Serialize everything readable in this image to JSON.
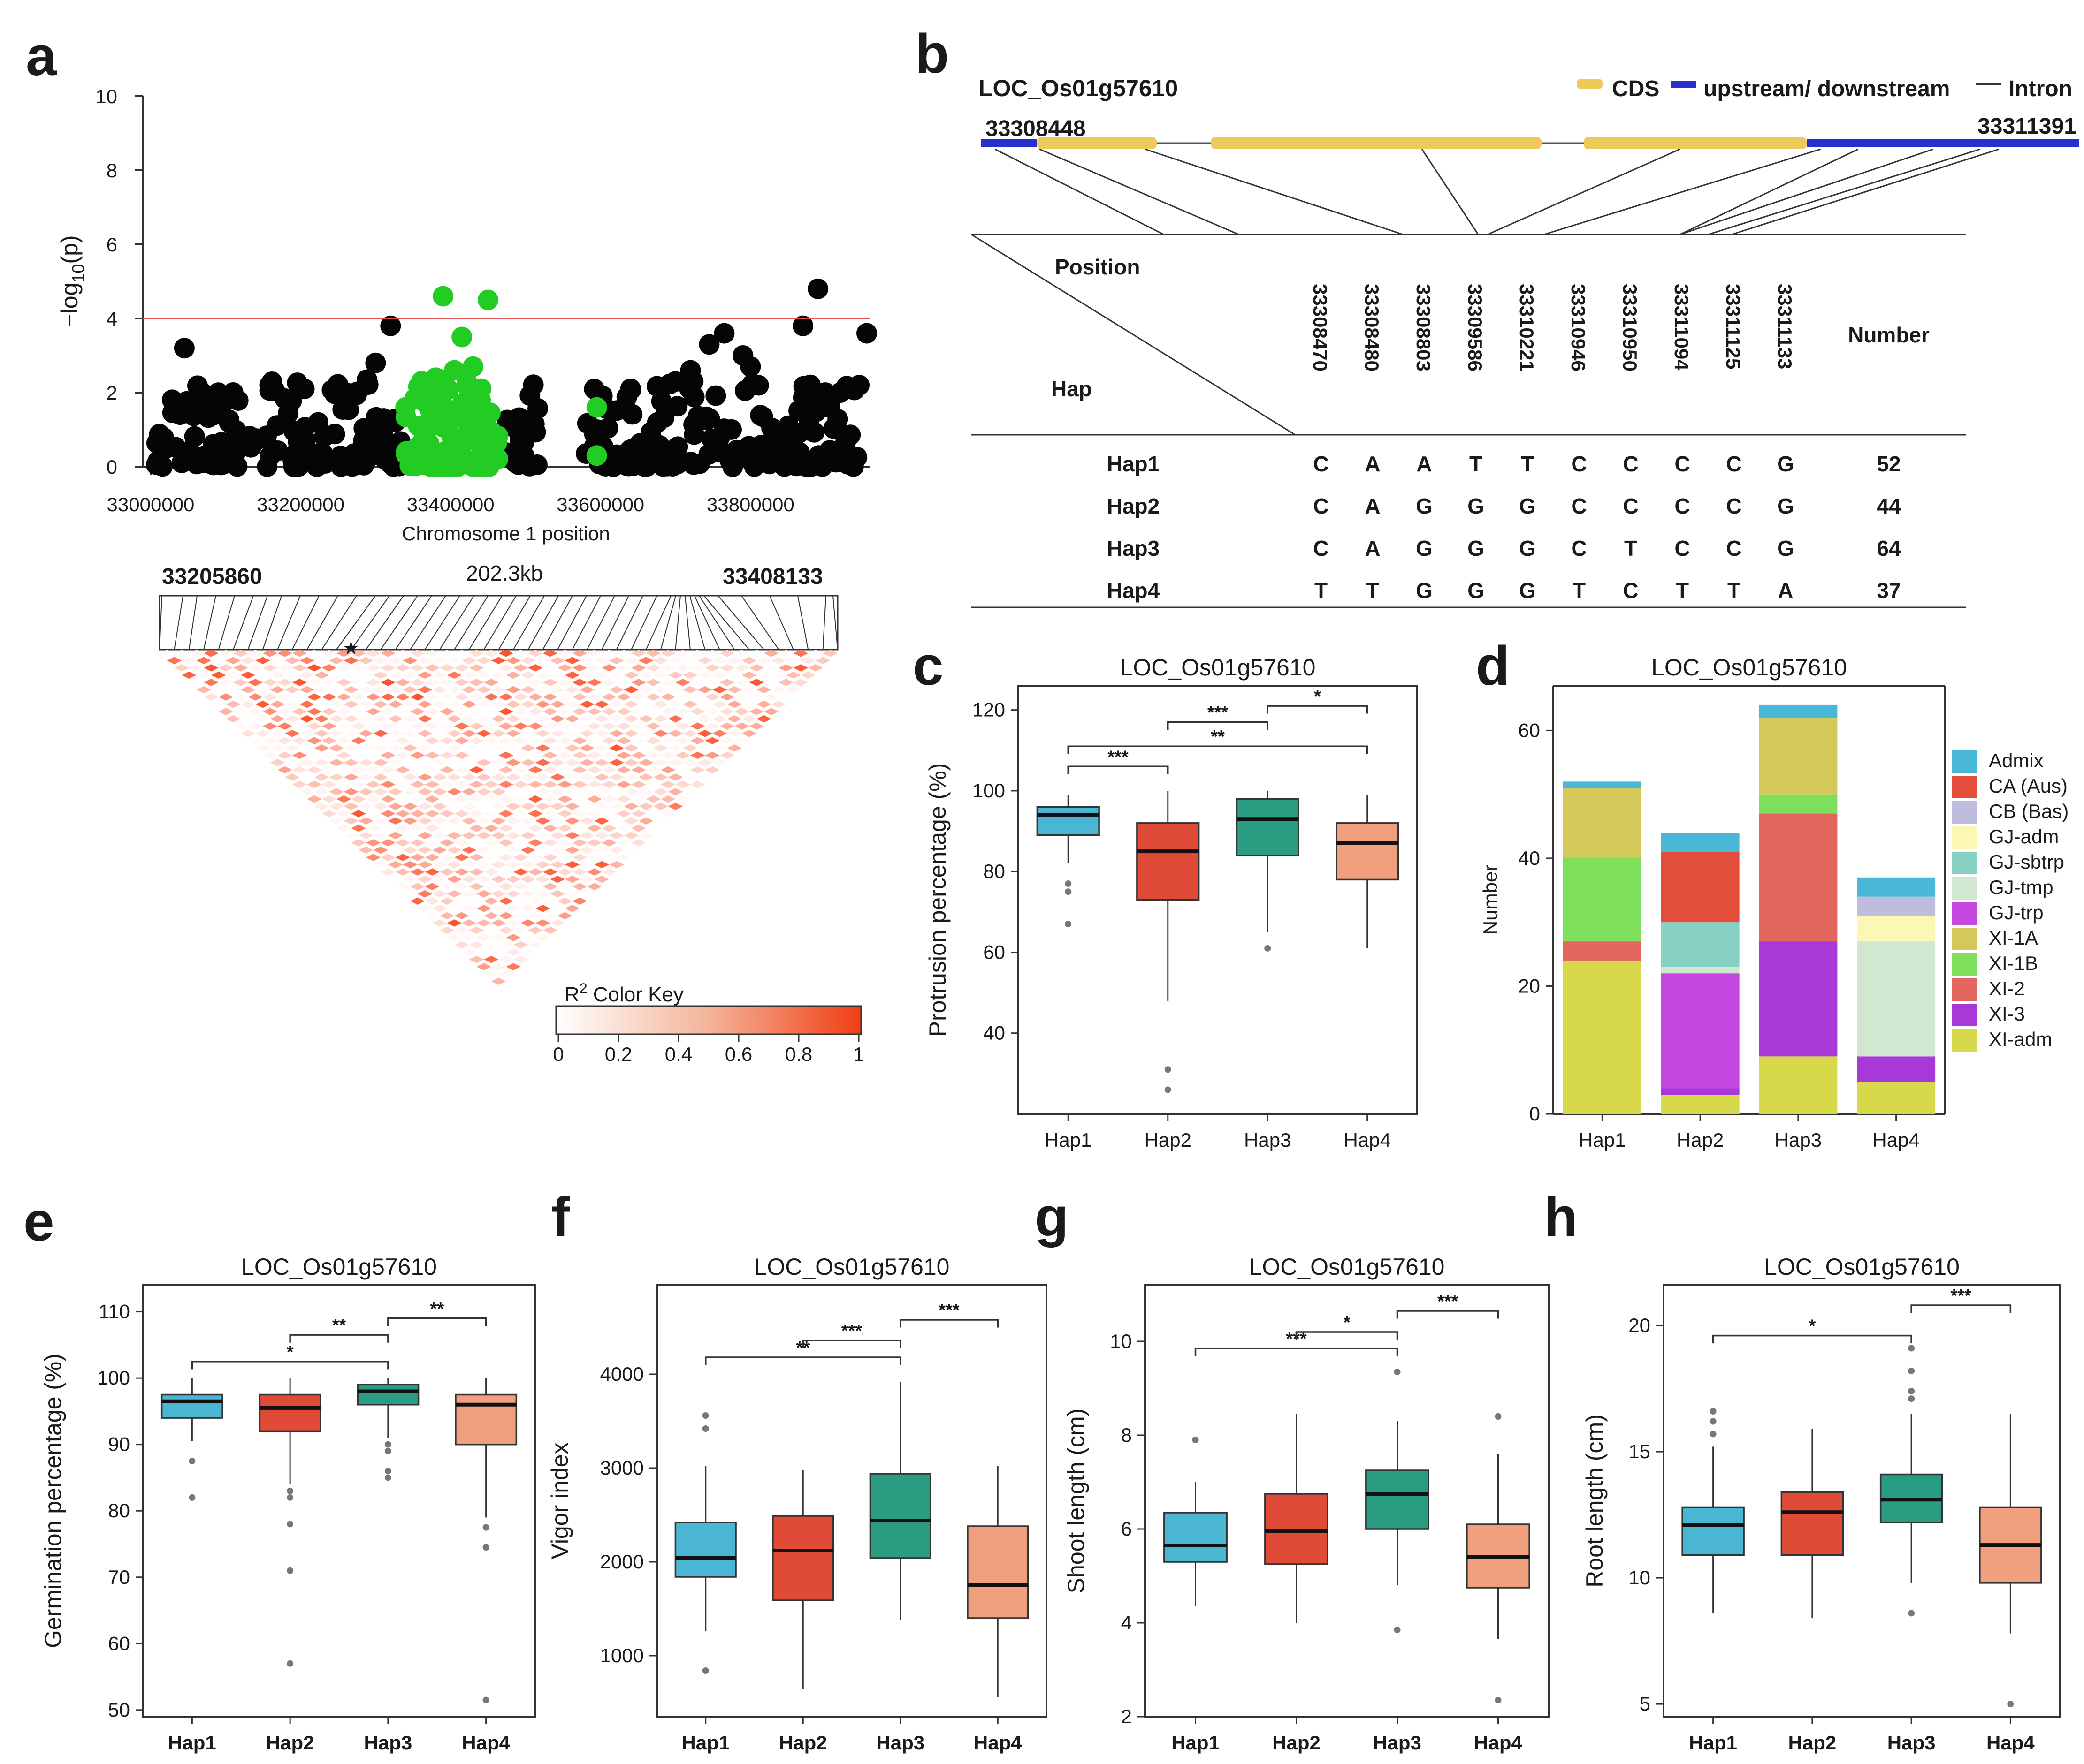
{
  "colors": {
    "hap1": "#4BB6D3",
    "hap2": "#E04B38",
    "hap3": "#2A9C82",
    "hap4": "#F0A07E",
    "sig_green": "#22CC22",
    "threshold_line": "#E05050",
    "cds": "#EFC95A",
    "utr": "#2A2ECC",
    "ld_max": "#F03E14"
  },
  "panel_a": {
    "label": "a",
    "manhattan": {
      "ylabel": "-log10(p)",
      "ylabel_main": "−log",
      "ylabel_sub": "10",
      "ylabel_rest": "(p)",
      "xlabel": "Chromosome 1 position",
      "yticks": [
        "0",
        "2",
        "4",
        "6",
        "8",
        "10"
      ],
      "xticks": [
        "33000000",
        "33200000",
        "33400000",
        "33600000",
        "33800000"
      ],
      "threshold": 4,
      "xlim": [
        32990000,
        33960000
      ],
      "ylim": [
        0,
        10
      ]
    },
    "ld": {
      "left_pos": "33205860",
      "right_pos": "33408133",
      "span": "202.3kb",
      "key_title_main": "R",
      "key_title_sup": "2",
      "key_title_rest": " Color Key",
      "key_ticks": [
        "0",
        "0.2",
        "0.4",
        "0.6",
        "0.8",
        "1"
      ]
    }
  },
  "panel_b": {
    "label": "b",
    "gene": "LOC_Os01g57610",
    "start": "33308448",
    "end": "33311391",
    "legend": {
      "cds": "CDS",
      "updown": "upstream/ downstream",
      "intron": "Intron"
    },
    "table": {
      "position_header": "Position",
      "hap_header": "Hap",
      "number_header": "Number",
      "positions": [
        "33308470",
        "33308480",
        "33308803",
        "33309586",
        "33310221",
        "33310946",
        "33310950",
        "33311094",
        "33311125",
        "33311133"
      ],
      "rows": [
        {
          "hap": "Hap1",
          "alleles": [
            "C",
            "A",
            "A",
            "T",
            "T",
            "C",
            "C",
            "C",
            "C",
            "G"
          ],
          "number": "52"
        },
        {
          "hap": "Hap2",
          "alleles": [
            "C",
            "A",
            "G",
            "G",
            "G",
            "C",
            "C",
            "C",
            "C",
            "G"
          ],
          "number": "44"
        },
        {
          "hap": "Hap3",
          "alleles": [
            "C",
            "A",
            "G",
            "G",
            "G",
            "C",
            "T",
            "C",
            "C",
            "G"
          ],
          "number": "64"
        },
        {
          "hap": "Hap4",
          "alleles": [
            "T",
            "T",
            "G",
            "G",
            "G",
            "T",
            "C",
            "T",
            "T",
            "A"
          ],
          "number": "37"
        }
      ]
    }
  },
  "chart_data": [
    {
      "id": "c",
      "type": "boxplot",
      "title": "LOC_Os01g57610",
      "ylabel": "Protrusion percentage  (%)",
      "xlabel": "",
      "categories": [
        "Hap1",
        "Hap2",
        "Hap3",
        "Hap4"
      ],
      "ylim": [
        20,
        126
      ],
      "yticks": [
        40,
        60,
        80,
        100,
        120
      ],
      "boxes": [
        {
          "q1": 89,
          "median": 94,
          "q3": 96,
          "whisker_low": 82,
          "whisker_high": 99,
          "outliers": [
            77,
            75,
            67
          ]
        },
        {
          "q1": 73,
          "median": 85,
          "q3": 92,
          "whisker_low": 48,
          "whisker_high": 100,
          "outliers": [
            31,
            26
          ]
        },
        {
          "q1": 84,
          "median": 93,
          "q3": 98,
          "whisker_low": 65,
          "whisker_high": 100,
          "outliers": [
            61
          ]
        },
        {
          "q1": 78,
          "median": 87,
          "q3": 92,
          "whisker_low": 61,
          "whisker_high": 99,
          "outliers": []
        }
      ],
      "brackets": [
        {
          "from": 0,
          "to": 1,
          "y": 106,
          "label": "***"
        },
        {
          "from": 1,
          "to": 2,
          "y": 117,
          "label": "***"
        },
        {
          "from": 2,
          "to": 3,
          "y": 121,
          "label": "*"
        },
        {
          "from": 0,
          "to": 3,
          "y": 111,
          "label": "**"
        }
      ]
    },
    {
      "id": "d",
      "type": "stacked_bar",
      "title": "LOC_Os01g57610",
      "ylabel": "Number",
      "xlabel": "",
      "categories": [
        "Hap1",
        "Hap2",
        "Hap3",
        "Hap4"
      ],
      "ylim": [
        0,
        67
      ],
      "yticks": [
        0,
        20,
        40,
        60
      ],
      "series": [
        {
          "name": "XI-adm",
          "color": "#D8D94A",
          "values": [
            24,
            3,
            9,
            5
          ]
        },
        {
          "name": "XI-3",
          "color": "#A838D8",
          "values": [
            0,
            1,
            18,
            4
          ]
        },
        {
          "name": "XI-2",
          "color": "#E0665E",
          "values": [
            3,
            0,
            20,
            0
          ]
        },
        {
          "name": "XI-1B",
          "color": "#7EDF5C",
          "values": [
            13,
            0,
            3,
            0
          ]
        },
        {
          "name": "XI-1A",
          "color": "#D4C85A",
          "values": [
            11,
            0,
            12,
            0
          ]
        },
        {
          "name": "GJ-trp",
          "color": "#C447DF",
          "values": [
            0,
            18,
            0,
            0
          ]
        },
        {
          "name": "GJ-tmp",
          "color": "#D2E7CF",
          "values": [
            0,
            1,
            0,
            18
          ]
        },
        {
          "name": "GJ-sbtrp",
          "color": "#87D1C3",
          "values": [
            0,
            7,
            0,
            0
          ]
        },
        {
          "name": "GJ-adm",
          "color": "#FAF8B4",
          "values": [
            0,
            0,
            0,
            4
          ]
        },
        {
          "name": "CB (Bas)",
          "color": "#BEBDE0",
          "values": [
            0,
            0,
            0,
            3
          ]
        },
        {
          "name": "CA (Aus)",
          "color": "#E24E39",
          "values": [
            0,
            11,
            0,
            0
          ]
        },
        {
          "name": "Admix",
          "color": "#49B7D6",
          "values": [
            1,
            3,
            2,
            3
          ]
        }
      ]
    },
    {
      "id": "e",
      "type": "boxplot",
      "title": "LOC_Os01g57610",
      "ylabel": "Germination percentage (%)",
      "xlabel": "",
      "categories": [
        "Hap1",
        "Hap2",
        "Hap3",
        "Hap4"
      ],
      "ylim": [
        49,
        114
      ],
      "yticks": [
        50,
        60,
        70,
        80,
        90,
        100,
        110
      ],
      "boxes": [
        {
          "q1": 94,
          "median": 96.5,
          "q3": 97.5,
          "whisker_low": 90.5,
          "whisker_high": 100,
          "outliers": [
            87.5,
            82
          ]
        },
        {
          "q1": 92,
          "median": 95.5,
          "q3": 97.5,
          "whisker_low": 84,
          "whisker_high": 100,
          "outliers": [
            83,
            82,
            78,
            71,
            57
          ]
        },
        {
          "q1": 96,
          "median": 98,
          "q3": 99,
          "whisker_low": 91,
          "whisker_high": 100,
          "outliers": [
            90,
            89,
            86,
            85
          ]
        },
        {
          "q1": 90,
          "median": 96,
          "q3": 97.5,
          "whisker_low": 79,
          "whisker_high": 100,
          "outliers": [
            77.5,
            74.5,
            51.5
          ]
        }
      ],
      "brackets": [
        {
          "from": 0,
          "to": 2,
          "y": 102.5,
          "label": "*"
        },
        {
          "from": 1,
          "to": 2,
          "y": 106.5,
          "label": "**"
        },
        {
          "from": 2,
          "to": 3,
          "y": 109,
          "label": "**"
        }
      ]
    },
    {
      "id": "f",
      "type": "boxplot",
      "title": "LOC_Os01g57610",
      "ylabel": "Vigor index",
      "xlabel": "",
      "categories": [
        "Hap1",
        "Hap2",
        "Hap3",
        "Hap4"
      ],
      "ylim": [
        350,
        4950
      ],
      "yticks": [
        1000,
        2000,
        3000,
        4000
      ],
      "boxes": [
        {
          "q1": 1840,
          "median": 2040,
          "q3": 2420,
          "whisker_low": 1260,
          "whisker_high": 3020,
          "outliers": [
            3560,
            3420,
            840
          ]
        },
        {
          "q1": 1590,
          "median": 2120,
          "q3": 2490,
          "whisker_low": 640,
          "whisker_high": 2980,
          "outliers": []
        },
        {
          "q1": 2040,
          "median": 2440,
          "q3": 2940,
          "whisker_low": 1380,
          "whisker_high": 3920,
          "outliers": []
        },
        {
          "q1": 1400,
          "median": 1750,
          "q3": 2380,
          "whisker_low": 560,
          "whisker_high": 3020,
          "outliers": []
        }
      ],
      "brackets": [
        {
          "from": 0,
          "to": 2,
          "y": 4180,
          "label": "**"
        },
        {
          "from": 1,
          "to": 2,
          "y": 4360,
          "label": "***"
        },
        {
          "from": 2,
          "to": 3,
          "y": 4580,
          "label": "***"
        }
      ]
    },
    {
      "id": "g",
      "type": "boxplot",
      "title": "LOC_Os01g57610",
      "ylabel": "Shoot length (cm)",
      "xlabel": "",
      "categories": [
        "Hap1",
        "Hap2",
        "Hap3",
        "Hap4"
      ],
      "ylim": [
        2,
        11.2
      ],
      "yticks": [
        2,
        4,
        6,
        8,
        10
      ],
      "boxes": [
        {
          "q1": 5.3,
          "median": 5.65,
          "q3": 6.35,
          "whisker_low": 4.35,
          "whisker_high": 7.0,
          "outliers": [
            7.9
          ]
        },
        {
          "q1": 5.25,
          "median": 5.95,
          "q3": 6.75,
          "whisker_low": 4.0,
          "whisker_high": 8.45,
          "outliers": []
        },
        {
          "q1": 6.0,
          "median": 6.75,
          "q3": 7.25,
          "whisker_low": 4.8,
          "whisker_high": 8.3,
          "outliers": [
            9.35,
            3.85
          ]
        },
        {
          "q1": 4.75,
          "median": 5.4,
          "q3": 6.1,
          "whisker_low": 3.65,
          "whisker_high": 7.6,
          "outliers": [
            8.4,
            2.35
          ]
        }
      ],
      "brackets": [
        {
          "from": 0,
          "to": 2,
          "y": 9.85,
          "label": "***"
        },
        {
          "from": 1,
          "to": 2,
          "y": 10.2,
          "label": "*"
        },
        {
          "from": 2,
          "to": 3,
          "y": 10.65,
          "label": "***"
        }
      ]
    },
    {
      "id": "h",
      "type": "boxplot",
      "title": "LOC_Os01g57610",
      "ylabel": "Root length (cm)",
      "xlabel": "",
      "categories": [
        "Hap1",
        "Hap2",
        "Hap3",
        "Hap4"
      ],
      "ylim": [
        4.5,
        21.6
      ],
      "yticks": [
        5,
        10,
        15,
        20
      ],
      "boxes": [
        {
          "q1": 10.9,
          "median": 12.1,
          "q3": 12.8,
          "whisker_low": 8.6,
          "whisker_high": 15.2,
          "outliers": [
            16.6,
            16.2,
            15.7
          ]
        },
        {
          "q1": 10.9,
          "median": 12.6,
          "q3": 13.4,
          "whisker_low": 8.4,
          "whisker_high": 15.9,
          "outliers": []
        },
        {
          "q1": 12.2,
          "median": 13.1,
          "q3": 14.1,
          "whisker_low": 9.8,
          "whisker_high": 16.5,
          "outliers": [
            19.1,
            18.2,
            17.4,
            17.1,
            8.6
          ]
        },
        {
          "q1": 9.8,
          "median": 11.3,
          "q3": 12.8,
          "whisker_low": 7.8,
          "whisker_high": 16.5,
          "outliers": [
            5.0
          ]
        }
      ],
      "brackets": [
        {
          "from": 0,
          "to": 2,
          "y": 19.6,
          "label": "*"
        },
        {
          "from": 2,
          "to": 3,
          "y": 20.8,
          "label": "***"
        }
      ]
    }
  ]
}
